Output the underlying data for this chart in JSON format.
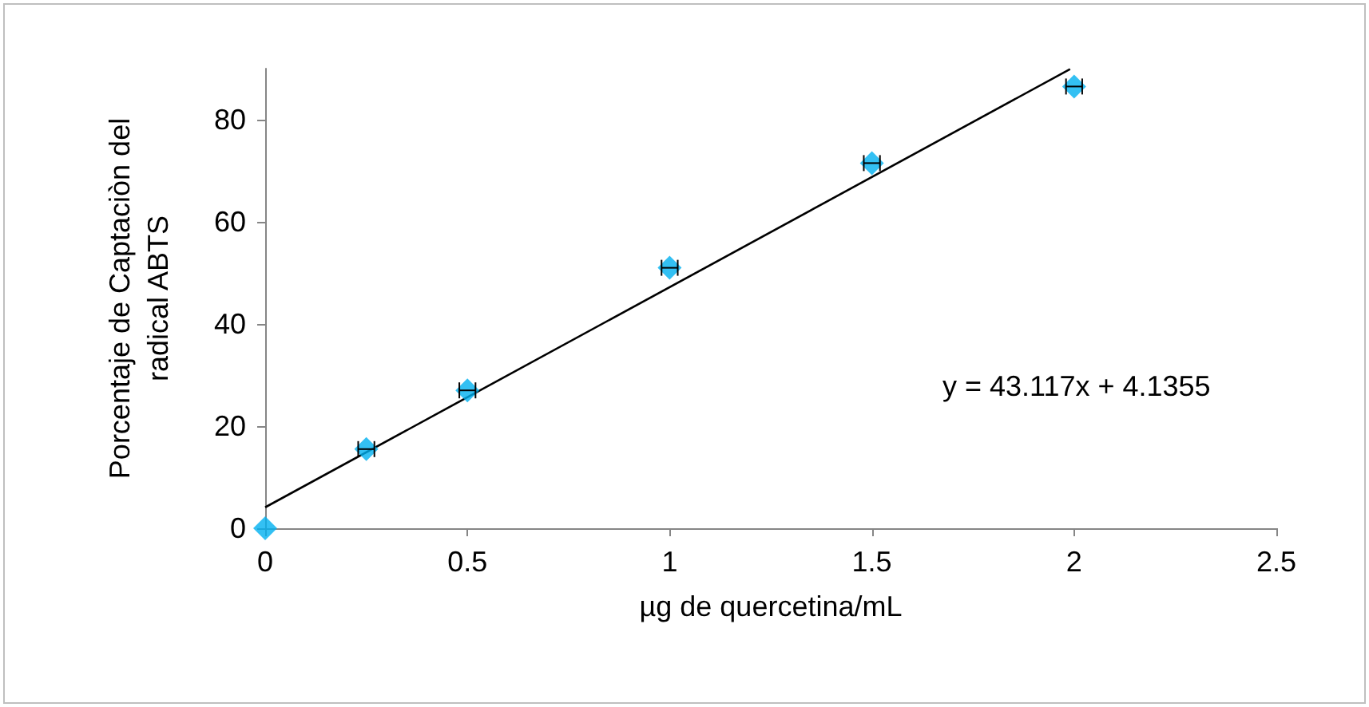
{
  "chart_data": {
    "type": "scatter",
    "xlabel": "µg de quercetina/mL",
    "ylabel": "Porcentaje de Captaciòn del\nradical ABTS",
    "x": [
      0,
      0.25,
      0.5,
      1,
      1.5,
      2
    ],
    "series": [
      {
        "color": "#00b0f0",
        "marker": "diamond",
        "values": [
          0,
          15.5,
          27,
          51,
          71.5,
          86.5
        ],
        "xerrors": [
          null,
          0.02,
          0.02,
          0.02,
          0.02,
          0.02
        ]
      },
      {
        "type": "line",
        "color": "#000000",
        "marker": "none",
        "x": [
          0,
          1.99
        ],
        "values": [
          4.1,
          89.9
        ]
      }
    ],
    "annotations": [
      "y = 43.117x + 4.1355"
    ],
    "xlim": [
      0,
      2.5
    ],
    "xticks": [
      0,
      0.5,
      1,
      1.5,
      2,
      2.5
    ],
    "ylim": [
      0,
      90
    ],
    "yticks": [
      0,
      20,
      40,
      60,
      80
    ],
    "grid": false
  }
}
